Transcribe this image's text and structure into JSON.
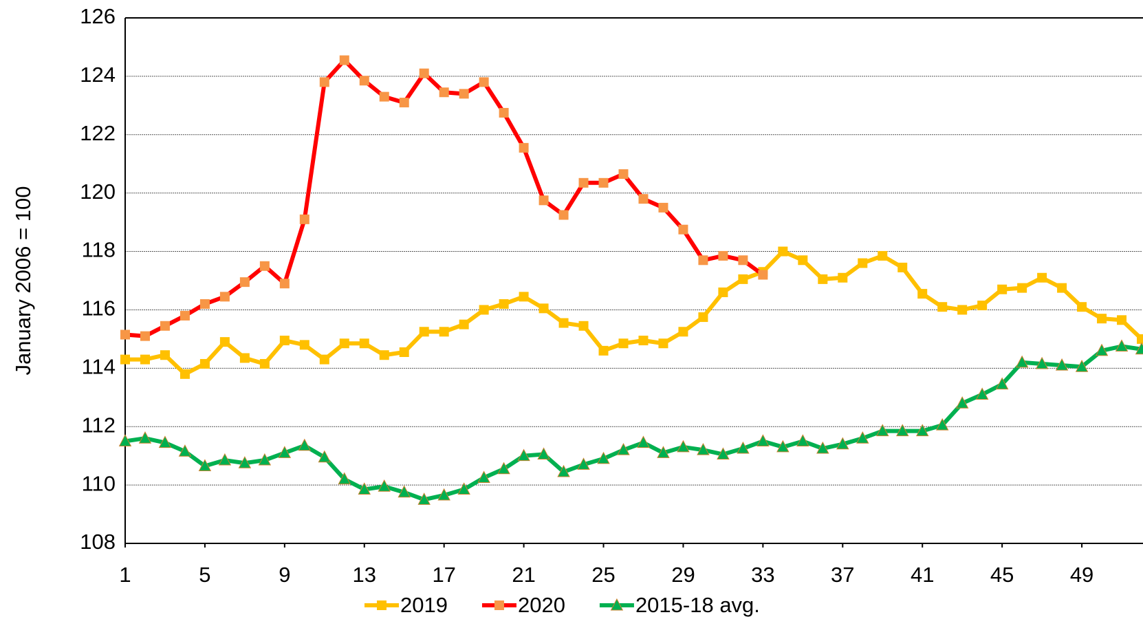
{
  "chart_data": {
    "type": "line",
    "y_label": "January 2006 = 100",
    "x": [
      1,
      2,
      3,
      4,
      5,
      6,
      7,
      8,
      9,
      10,
      11,
      12,
      13,
      14,
      15,
      16,
      17,
      18,
      19,
      20,
      21,
      22,
      23,
      24,
      25,
      26,
      27,
      28,
      29,
      30,
      31,
      32,
      33,
      34,
      35,
      36,
      37,
      38,
      39,
      40,
      41,
      42,
      43,
      44,
      45,
      46,
      47,
      48,
      49,
      50,
      51,
      52
    ],
    "xlim": [
      1,
      52
    ],
    "xticks": [
      1,
      5,
      9,
      13,
      17,
      21,
      25,
      29,
      33,
      37,
      41,
      45,
      49
    ],
    "ylim": [
      108,
      126
    ],
    "yticks": [
      108,
      110,
      112,
      114,
      116,
      118,
      120,
      122,
      124,
      126
    ],
    "grid": true,
    "legend": "bottom",
    "series": [
      {
        "name": "2019",
        "color": "#ffc000",
        "marker_color": "#ffc000",
        "marker": "square",
        "values": [
          114.3,
          114.3,
          114.45,
          113.8,
          114.15,
          114.9,
          114.35,
          114.15,
          114.95,
          114.8,
          114.3,
          114.85,
          114.85,
          114.45,
          114.55,
          115.25,
          115.25,
          115.5,
          116.0,
          116.2,
          116.45,
          116.05,
          115.55,
          115.45,
          114.6,
          114.85,
          114.95,
          114.85,
          115.25,
          115.75,
          116.6,
          117.05,
          117.3,
          118.0,
          117.7,
          117.05,
          117.1,
          117.6,
          117.85,
          117.45,
          116.55,
          116.1,
          116.0,
          116.15,
          116.7,
          116.75,
          117.1,
          116.75,
          116.1,
          115.7,
          115.65,
          115.0
        ]
      },
      {
        "name": "2020",
        "color": "#ff0000",
        "marker_color": "#f79646",
        "marker": "square",
        "values": [
          115.15,
          115.1,
          115.45,
          115.8,
          116.2,
          116.45,
          116.95,
          117.5,
          116.9,
          119.1,
          123.8,
          124.55,
          123.85,
          123.3,
          123.1,
          124.1,
          123.45,
          123.4,
          123.8,
          122.75,
          121.55,
          119.75,
          119.25,
          120.35,
          120.35,
          120.65,
          119.8,
          119.5,
          118.75,
          117.7,
          117.85,
          117.7,
          117.2,
          null,
          null,
          null,
          null,
          null,
          null,
          null,
          null,
          null,
          null,
          null,
          null,
          null,
          null,
          null,
          null,
          null,
          null,
          null
        ]
      },
      {
        "name": "2015-18 avg.",
        "color": "#00b050",
        "marker_color": "#00b050",
        "marker": "triangle",
        "values": [
          111.5,
          111.6,
          111.45,
          111.15,
          110.65,
          110.85,
          110.75,
          110.85,
          111.1,
          111.35,
          110.95,
          110.2,
          109.85,
          109.95,
          109.75,
          109.5,
          109.65,
          109.85,
          110.25,
          110.55,
          111.0,
          111.05,
          110.45,
          110.7,
          110.9,
          111.2,
          111.45,
          111.1,
          111.3,
          111.2,
          111.05,
          111.25,
          111.5,
          111.3,
          111.5,
          111.25,
          111.4,
          111.6,
          111.85,
          111.85,
          111.85,
          112.05,
          112.8,
          113.1,
          113.45,
          114.2,
          114.15,
          114.1,
          114.05,
          114.6,
          114.75,
          114.65
        ]
      }
    ]
  }
}
